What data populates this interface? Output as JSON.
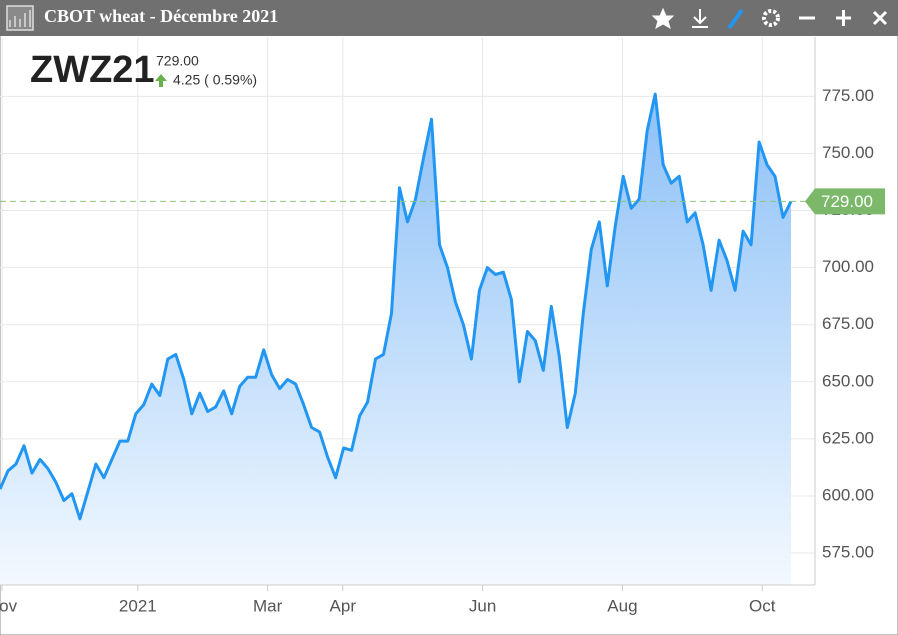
{
  "window": {
    "title": "CBOT wheat - Décembre 2021"
  },
  "quote": {
    "symbol": "ZWZ21",
    "change": "4.25 ( 0.59%)"
  },
  "chart_data": {
    "type": "area",
    "series": [
      {
        "color": "#2196f3",
        "values": [
          603,
          611,
          614,
          622,
          610,
          616,
          612,
          606,
          598,
          601,
          590,
          602,
          614,
          608,
          616,
          624,
          624,
          636,
          640,
          649,
          644,
          660,
          662,
          651,
          636,
          645,
          637,
          639,
          646,
          636,
          648,
          652,
          652,
          664,
          653,
          647,
          651,
          649,
          640,
          630,
          628,
          617,
          608,
          621,
          620,
          635,
          641,
          660,
          662,
          680,
          735,
          720,
          730,
          748,
          765,
          710,
          700,
          685,
          675,
          660,
          690,
          700,
          697,
          698,
          686,
          650,
          672,
          668,
          655,
          683,
          661,
          630,
          645,
          680,
          708,
          720,
          692,
          718,
          740,
          726,
          730,
          760,
          776,
          745,
          737,
          740,
          720,
          724,
          710,
          690,
          712,
          703,
          690,
          716,
          710,
          755,
          745,
          740,
          722,
          729
        ]
      }
    ],
    "last": {
      "value": 729,
      "label": "729.00"
    },
    "xlim": [
      0,
      102
    ],
    "xticks": [
      {
        "value": 0.25,
        "label": "Nov"
      },
      {
        "value": 17.25,
        "label": "2021"
      },
      {
        "value": 33.5,
        "label": "Mar"
      },
      {
        "value": 42.9,
        "label": "Apr"
      },
      {
        "value": 60.4,
        "label": "Jun"
      },
      {
        "value": 77.9,
        "label": "Aug"
      },
      {
        "value": 95.4,
        "label": "Oct"
      }
    ],
    "ylim": [
      561,
      801
    ],
    "yticks": [
      {
        "value": 575,
        "label": "575.00"
      },
      {
        "value": 600,
        "label": "600.00"
      },
      {
        "value": 625,
        "label": "625.00"
      },
      {
        "value": 650,
        "label": "650.00"
      },
      {
        "value": 675,
        "label": "675.00"
      },
      {
        "value": 700,
        "label": "700.00"
      },
      {
        "value": 725,
        "label": "725.00"
      },
      {
        "value": 750,
        "label": "750.00"
      },
      {
        "value": 775,
        "label": "775.00"
      }
    ],
    "grid": true
  }
}
